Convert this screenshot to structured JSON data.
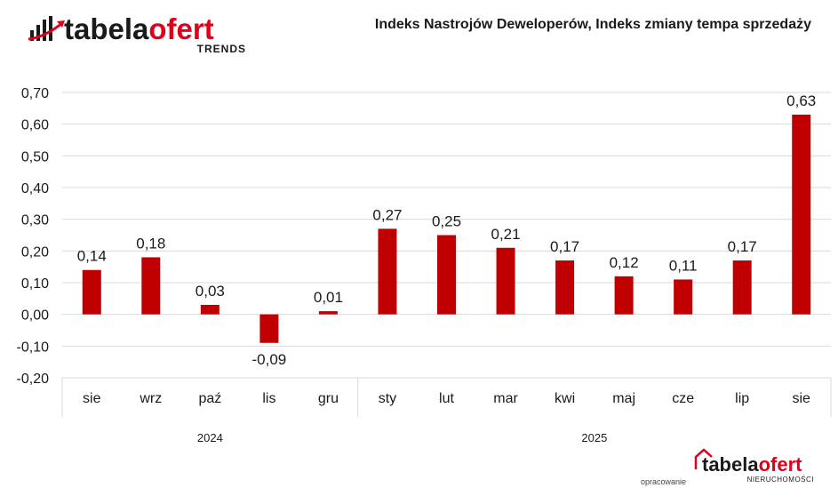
{
  "header": {
    "logo_part1": "tabela",
    "logo_part2": "ofert",
    "logo_sub": "TRENDS",
    "chart_title": "Indeks Nastrojów Deweloperów, Indeks zmiany tempa sprzedaży"
  },
  "footer": {
    "note": "opracowanie",
    "logo_part1": "tabela",
    "logo_part2": "ofert",
    "logo_sub": "NIERUCHOMOŚCI"
  },
  "colors": {
    "bar": "#c00000",
    "accent": "#e0001b",
    "dark": "#1a1a1a"
  },
  "chart_data": {
    "type": "bar",
    "title": "Indeks Nastrojów Deweloperów, Indeks zmiany tempa sprzedaży",
    "categories": [
      "sie",
      "wrz",
      "paź",
      "lis",
      "gru",
      "sty",
      "lut",
      "mar",
      "kwi",
      "maj",
      "cze",
      "lip",
      "sie"
    ],
    "groups": [
      {
        "label": "2024",
        "count": 5
      },
      {
        "label": "2025",
        "count": 8
      }
    ],
    "values": [
      0.14,
      0.18,
      0.03,
      -0.09,
      0.01,
      0.27,
      0.25,
      0.21,
      0.17,
      0.12,
      0.11,
      0.17,
      0.63
    ],
    "value_labels": [
      "0,14",
      "0,18",
      "0,03",
      "-0,09",
      "0,01",
      "0,27",
      "0,25",
      "0,21",
      "0,17",
      "0,12",
      "0,11",
      "0,17",
      "0,63"
    ],
    "yticks": [
      0.7,
      0.6,
      0.5,
      0.4,
      0.3,
      0.2,
      0.1,
      0.0,
      -0.1,
      -0.2
    ],
    "ytick_labels": [
      "0,70",
      "0,60",
      "0,50",
      "0,40",
      "0,30",
      "0,20",
      "0,10",
      "0,00",
      "-0,10",
      "-0,20"
    ],
    "ylim": [
      -0.2,
      0.7
    ],
    "grid": true,
    "legend": "none"
  }
}
